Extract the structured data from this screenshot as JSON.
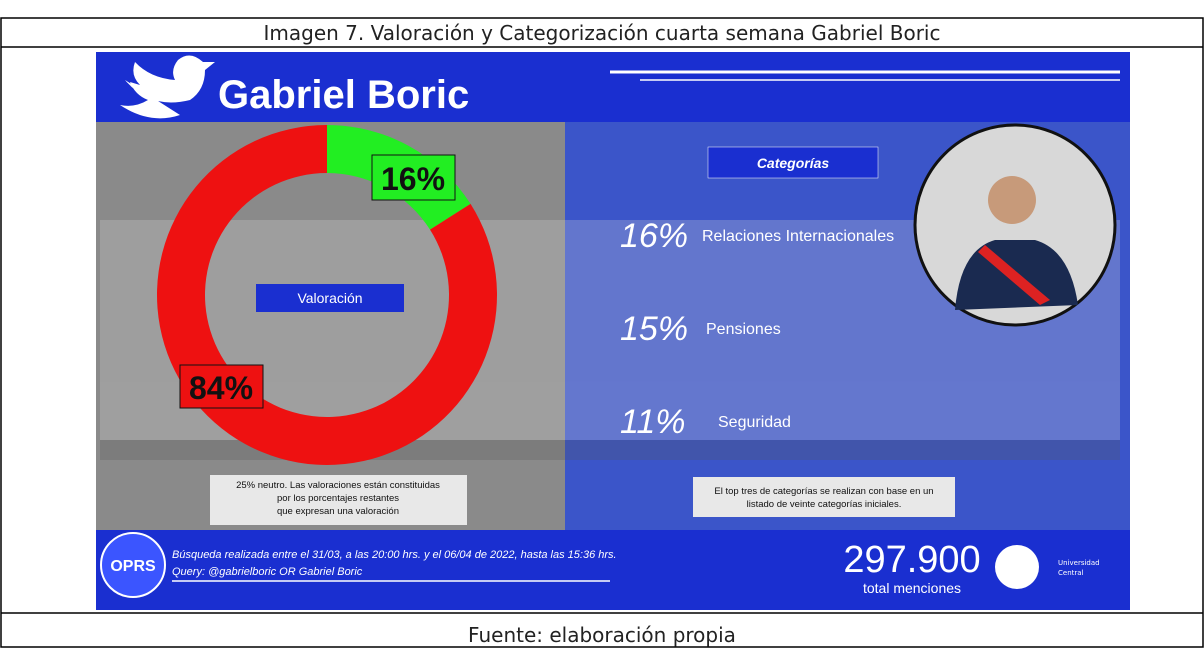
{
  "caption": "Imagen 7. Valoración y Categorización cuarta semana Gabriel Boric",
  "source": "Fuente: elaboración propia",
  "infographic": {
    "name": "Gabriel Boric",
    "categories_title": "Categorías",
    "categories": [
      {
        "pct": "16%",
        "name": "Relaciones Internacionales"
      },
      {
        "pct": "15%",
        "name": "Pensiones"
      },
      {
        "pct": "11%",
        "name": "Seguridad"
      }
    ],
    "left_note": [
      "25% neutro. Las valoraciones están constituidas",
      "por los porcentajes restantes",
      "que expresan una valoración"
    ],
    "right_note": [
      "El top tres de categorías se realizan con base en un",
      "listado de veinte categorías iniciales."
    ],
    "search": "Búsqueda realizada entre el 31/03, a las 20:00 hrs. y el 06/04 de 2022, hasta las 15:36 hrs.",
    "query": "Query: @gabrielboric OR Gabriel Boric",
    "mentions": "297.900",
    "mentions_label": "total menciones",
    "logo_left": "OPRS",
    "logo_right": [
      "Universidad",
      "Central"
    ]
  },
  "chart_data": {
    "type": "pie",
    "title": "Valoración",
    "categories": [
      null,
      null
    ],
    "values": [
      16,
      84
    ],
    "value_labels": [
      "16%",
      "84%"
    ],
    "colors": [
      "#22ee22",
      "#ee1111"
    ],
    "donut": true
  }
}
